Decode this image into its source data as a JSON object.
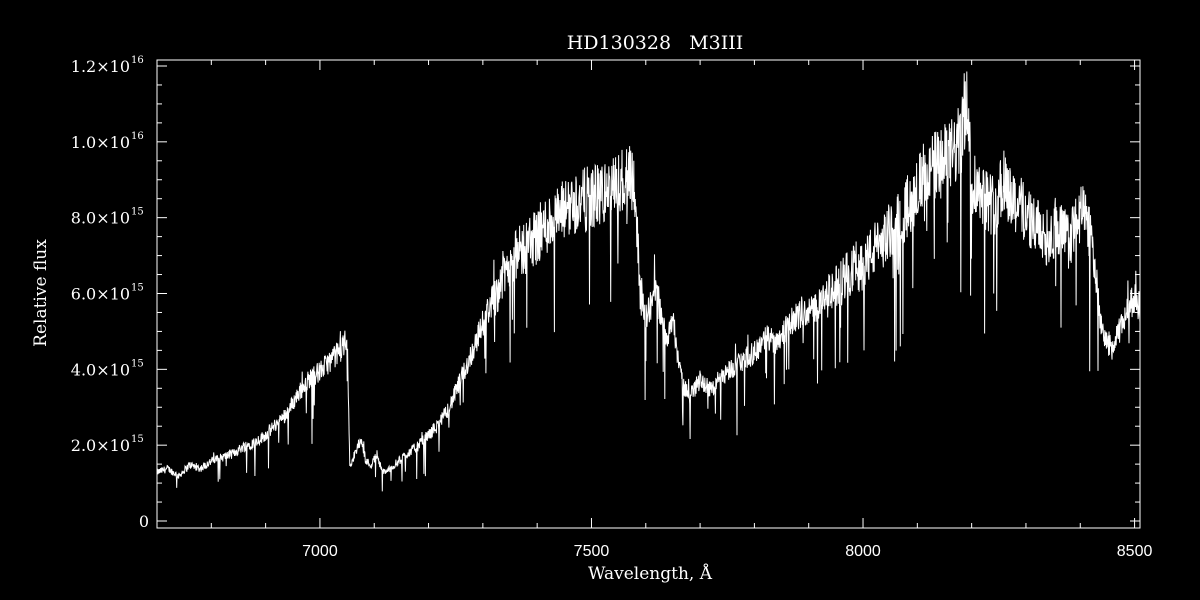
{
  "chart_data": {
    "type": "line",
    "title": "HD130328   M3III",
    "xlabel": "Wavelength, Å",
    "ylabel": "Relative flux",
    "xlim": [
      6700,
      8510
    ],
    "ylim": [
      0,
      1.2e+16
    ],
    "grid": false,
    "x_ticks": [
      7000,
      7500,
      8000,
      8500
    ],
    "x_tick_labels": [
      "7000",
      "7500",
      "8000",
      "8500"
    ],
    "y_ticks": [
      0,
      2000000000000000.0,
      4000000000000000.0,
      6000000000000000.0,
      8000000000000000.0,
      1e+16,
      1.2e+16
    ],
    "y_tick_labels": [
      {
        "mant": "0",
        "exp": ""
      },
      {
        "mant": "2.0×10",
        "exp": "15"
      },
      {
        "mant": "4.0×10",
        "exp": "15"
      },
      {
        "mant": "6.0×10",
        "exp": "15"
      },
      {
        "mant": "8.0×10",
        "exp": "15"
      },
      {
        "mant": "1.0×10",
        "exp": "16"
      },
      {
        "mant": "1.2×10",
        "exp": "16"
      }
    ],
    "colors": {
      "background": "#000000",
      "line": "#ffffff"
    },
    "series": [
      {
        "x": [
          6700,
          6720,
          6740,
          6760,
          6780,
          6800,
          6820,
          6840,
          6860,
          6880,
          6900,
          6920,
          6940,
          6960,
          6980,
          7000,
          7020,
          7040,
          7050,
          7055,
          7065,
          7075,
          7085,
          7095,
          7105,
          7115,
          7130,
          7145,
          7160,
          7180,
          7200,
          7220,
          7240,
          7260,
          7280,
          7300,
          7320,
          7340,
          7360,
          7380,
          7400,
          7420,
          7440,
          7460,
          7480,
          7500,
          7520,
          7540,
          7560,
          7570,
          7580,
          7590,
          7600,
          7610,
          7620,
          7630,
          7640,
          7650,
          7660,
          7670,
          7680,
          7700,
          7720,
          7740,
          7760,
          7780,
          7800,
          7820,
          7840,
          7860,
          7880,
          7900,
          7920,
          7940,
          7960,
          7980,
          8000,
          8020,
          8040,
          8060,
          8080,
          8100,
          8120,
          8140,
          8160,
          8180,
          8190,
          8200,
          8220,
          8240,
          8260,
          8280,
          8300,
          8320,
          8340,
          8360,
          8380,
          8400,
          8420,
          8440,
          8460,
          8480,
          8500,
          8510
        ],
        "y": [
          1300000000000000.0,
          1400000000000000.0,
          1200000000000000.0,
          1500000000000000.0,
          1400000000000000.0,
          1600000000000000.0,
          1700000000000000.0,
          1800000000000000.0,
          2000000000000000.0,
          2100000000000000.0,
          2300000000000000.0,
          2600000000000000.0,
          2900000000000000.0,
          3400000000000000.0,
          3800000000000000.0,
          4000000000000000.0,
          4300000000000000.0,
          4600000000000000.0,
          4900000000000000.0,
          1500000000000000.0,
          1800000000000000.0,
          2200000000000000.0,
          1600000000000000.0,
          1500000000000000.0,
          1800000000000000.0,
          1300000000000000.0,
          1400000000000000.0,
          1600000000000000.0,
          1800000000000000.0,
          2000000000000000.0,
          2300000000000000.0,
          2600000000000000.0,
          3100000000000000.0,
          3800000000000000.0,
          4500000000000000.0,
          5300000000000000.0,
          6000000000000000.0,
          6700000000000000.0,
          7100000000000000.0,
          7400000000000000.0,
          7700000000000000.0,
          8000000000000000.0,
          8200000000000000.0,
          8500000000000000.0,
          8600000000000000.0,
          8700000000000000.0,
          8800000000000000.0,
          8900000000000000.0,
          9200000000000000.0,
          9500000000000000.0,
          9000000000000000.0,
          6000000000000000.0,
          5500000000000000.0,
          5800000000000000.0,
          6300000000000000.0,
          5200000000000000.0,
          5000000000000000.0,
          5500000000000000.0,
          4200000000000000.0,
          3600000000000000.0,
          3300000000000000.0,
          3800000000000000.0,
          3500000000000000.0,
          3900000000000000.0,
          4100000000000000.0,
          4300000000000000.0,
          4500000000000000.0,
          4900000000000000.0,
          4800000000000000.0,
          5200000000000000.0,
          5500000000000000.0,
          5600000000000000.0,
          5800000000000000.0,
          6100000000000000.0,
          6400000000000000.0,
          6800000000000000.0,
          6900000000000000.0,
          7300000000000000.0,
          7600000000000000.0,
          8000000000000000.0,
          8400000000000000.0,
          9000000000000000.0,
          9400000000000000.0,
          9600000000000000.0,
          9800000000000000.0,
          1.02e+16,
          1.14e+16,
          9200000000000000.0,
          8800000000000000.0,
          8500000000000000.0,
          9100000000000000.0,
          8600000000000000.0,
          8300000000000000.0,
          7900000000000000.0,
          7600000000000000.0,
          7900000000000000.0,
          7500000000000000.0,
          8300000000000000.0,
          7800000000000000.0,
          5000000000000000.0,
          4600000000000000.0,
          5400000000000000.0,
          6000000000000000.0,
          5700000000000000.0
        ]
      }
    ]
  }
}
